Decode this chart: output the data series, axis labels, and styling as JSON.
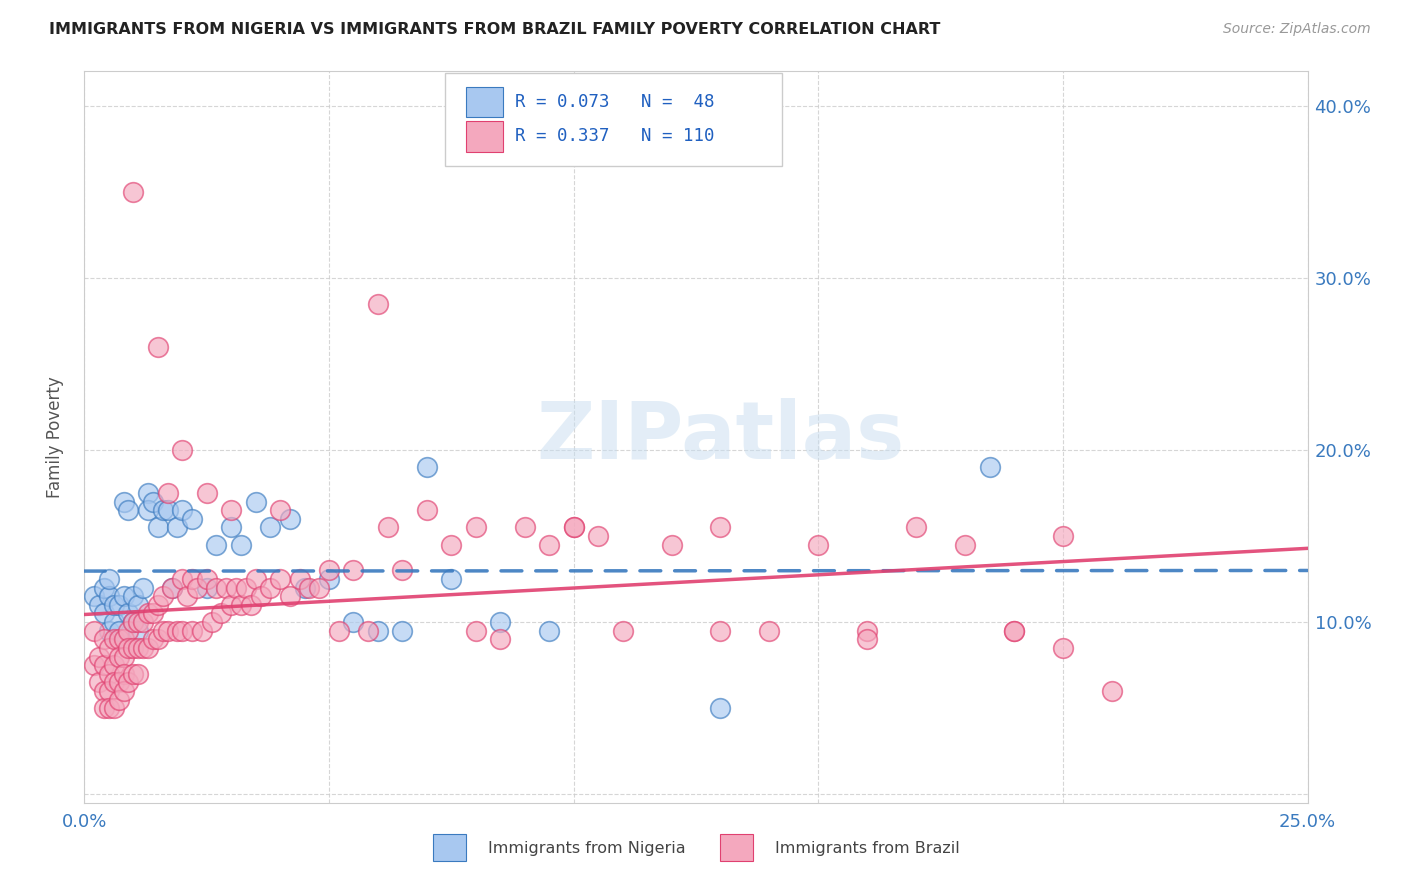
{
  "title": "IMMIGRANTS FROM NIGERIA VS IMMIGRANTS FROM BRAZIL FAMILY POVERTY CORRELATION CHART",
  "source": "Source: ZipAtlas.com",
  "ylabel": "Family Poverty",
  "legend_label1": "Immigrants from Nigeria",
  "legend_label2": "Immigrants from Brazil",
  "R1": 0.073,
  "N1": 48,
  "R2": 0.337,
  "N2": 110,
  "color1": "#a8c8f0",
  "color2": "#f4a8be",
  "line_color1": "#3a7abf",
  "line_color2": "#e04070",
  "xlim": [
    0.0,
    0.25
  ],
  "ylim": [
    -0.005,
    0.42
  ],
  "xtick_vals": [
    0.0,
    0.05,
    0.1,
    0.15,
    0.2,
    0.25
  ],
  "xticklabels": [
    "0.0%",
    "",
    "",
    "",
    "",
    "25.0%"
  ],
  "ytick_vals": [
    0.0,
    0.1,
    0.2,
    0.3,
    0.4
  ],
  "yticklabels_right": [
    "",
    "10.0%",
    "20.0%",
    "30.0%",
    "40.0%"
  ],
  "watermark": "ZIPatlas",
  "nigeria_x": [
    0.002,
    0.003,
    0.004,
    0.004,
    0.005,
    0.005,
    0.005,
    0.006,
    0.006,
    0.007,
    0.007,
    0.008,
    0.008,
    0.009,
    0.009,
    0.01,
    0.01,
    0.011,
    0.011,
    0.012,
    0.013,
    0.013,
    0.014,
    0.015,
    0.016,
    0.017,
    0.018,
    0.019,
    0.02,
    0.022,
    0.025,
    0.027,
    0.03,
    0.032,
    0.035,
    0.038,
    0.042,
    0.045,
    0.05,
    0.055,
    0.06,
    0.065,
    0.07,
    0.075,
    0.085,
    0.095,
    0.13,
    0.185
  ],
  "nigeria_y": [
    0.115,
    0.11,
    0.12,
    0.105,
    0.115,
    0.095,
    0.125,
    0.1,
    0.11,
    0.11,
    0.095,
    0.115,
    0.17,
    0.105,
    0.165,
    0.1,
    0.115,
    0.11,
    0.095,
    0.12,
    0.175,
    0.165,
    0.17,
    0.155,
    0.165,
    0.165,
    0.12,
    0.155,
    0.165,
    0.16,
    0.12,
    0.145,
    0.155,
    0.145,
    0.17,
    0.155,
    0.16,
    0.12,
    0.125,
    0.1,
    0.095,
    0.095,
    0.19,
    0.125,
    0.1,
    0.095,
    0.05,
    0.19
  ],
  "brazil_x": [
    0.002,
    0.002,
    0.003,
    0.003,
    0.004,
    0.004,
    0.004,
    0.004,
    0.005,
    0.005,
    0.005,
    0.005,
    0.006,
    0.006,
    0.006,
    0.006,
    0.007,
    0.007,
    0.007,
    0.007,
    0.008,
    0.008,
    0.008,
    0.008,
    0.009,
    0.009,
    0.009,
    0.01,
    0.01,
    0.01,
    0.011,
    0.011,
    0.011,
    0.012,
    0.012,
    0.013,
    0.013,
    0.014,
    0.014,
    0.015,
    0.015,
    0.016,
    0.016,
    0.017,
    0.017,
    0.018,
    0.019,
    0.02,
    0.02,
    0.021,
    0.022,
    0.022,
    0.023,
    0.024,
    0.025,
    0.026,
    0.027,
    0.028,
    0.029,
    0.03,
    0.031,
    0.032,
    0.033,
    0.034,
    0.035,
    0.036,
    0.038,
    0.04,
    0.042,
    0.044,
    0.046,
    0.048,
    0.05,
    0.052,
    0.055,
    0.058,
    0.062,
    0.065,
    0.07,
    0.075,
    0.08,
    0.085,
    0.09,
    0.095,
    0.1,
    0.105,
    0.11,
    0.12,
    0.13,
    0.14,
    0.15,
    0.16,
    0.17,
    0.18,
    0.19,
    0.2,
    0.01,
    0.015,
    0.02,
    0.025,
    0.03,
    0.04,
    0.06,
    0.08,
    0.1,
    0.13,
    0.16,
    0.19,
    0.2,
    0.21
  ],
  "brazil_y": [
    0.095,
    0.075,
    0.08,
    0.065,
    0.09,
    0.075,
    0.06,
    0.05,
    0.085,
    0.07,
    0.06,
    0.05,
    0.09,
    0.075,
    0.065,
    0.05,
    0.09,
    0.08,
    0.065,
    0.055,
    0.09,
    0.08,
    0.07,
    0.06,
    0.095,
    0.085,
    0.065,
    0.1,
    0.085,
    0.07,
    0.1,
    0.085,
    0.07,
    0.1,
    0.085,
    0.105,
    0.085,
    0.105,
    0.09,
    0.11,
    0.09,
    0.115,
    0.095,
    0.175,
    0.095,
    0.12,
    0.095,
    0.125,
    0.095,
    0.115,
    0.125,
    0.095,
    0.12,
    0.095,
    0.125,
    0.1,
    0.12,
    0.105,
    0.12,
    0.11,
    0.12,
    0.11,
    0.12,
    0.11,
    0.125,
    0.115,
    0.12,
    0.125,
    0.115,
    0.125,
    0.12,
    0.12,
    0.13,
    0.095,
    0.13,
    0.095,
    0.155,
    0.13,
    0.165,
    0.145,
    0.155,
    0.09,
    0.155,
    0.145,
    0.155,
    0.15,
    0.095,
    0.145,
    0.155,
    0.095,
    0.145,
    0.095,
    0.155,
    0.145,
    0.095,
    0.15,
    0.35,
    0.26,
    0.2,
    0.175,
    0.165,
    0.165,
    0.285,
    0.095,
    0.155,
    0.095,
    0.09,
    0.095,
    0.085,
    0.06
  ]
}
